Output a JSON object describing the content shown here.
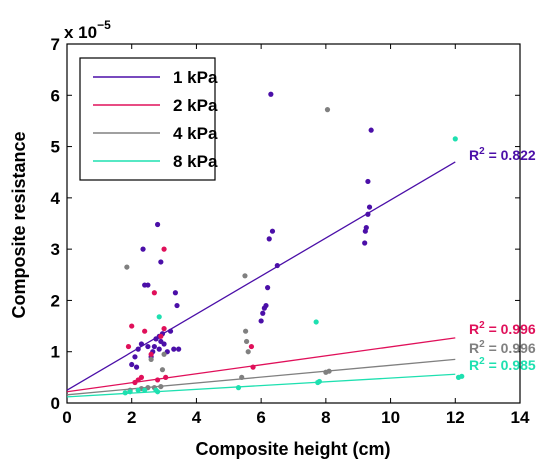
{
  "chart_data": {
    "type": "scatter",
    "title": "",
    "xlabel": "Composite height (cm)",
    "ylabel": "Composite resistance",
    "y_multiplier": {
      "base": "x 10",
      "exponent": "−5"
    },
    "xlim": [
      0,
      14
    ],
    "ylim": [
      0,
      7
    ],
    "xticks": [
      0,
      2,
      4,
      6,
      8,
      10,
      12,
      14
    ],
    "yticks": [
      0,
      1,
      2,
      3,
      4,
      5,
      6,
      7
    ],
    "xtick_labels": [
      "0",
      "2",
      "4",
      "6",
      "8",
      "10",
      "12",
      "14"
    ],
    "ytick_labels": [
      "0",
      "1",
      "2",
      "3",
      "4",
      "5",
      "6",
      "7"
    ],
    "grid": false,
    "legend_position": "top-left",
    "series": [
      {
        "name": "1 kPa",
        "color": "#4b0fa8",
        "fit": {
          "x": [
            0,
            12
          ],
          "y": [
            0.25,
            4.7
          ]
        },
        "r2_label": "R",
        "r2_sup": "2",
        "r2_value": " = 0.822",
        "points": [
          [
            2.0,
            0.75
          ],
          [
            2.1,
            0.9
          ],
          [
            2.15,
            0.7
          ],
          [
            2.2,
            1.05
          ],
          [
            2.3,
            1.15
          ],
          [
            2.35,
            3.0
          ],
          [
            2.4,
            2.3
          ],
          [
            2.5,
            2.3
          ],
          [
            2.5,
            1.1
          ],
          [
            2.6,
            0.9
          ],
          [
            2.65,
            1.0
          ],
          [
            2.7,
            1.1
          ],
          [
            2.75,
            1.25
          ],
          [
            2.8,
            3.48
          ],
          [
            2.85,
            1.3
          ],
          [
            2.85,
            1.05
          ],
          [
            2.9,
            2.75
          ],
          [
            2.9,
            1.2
          ],
          [
            2.95,
            1.35
          ],
          [
            3.0,
            1.15
          ],
          [
            3.1,
            1.0
          ],
          [
            3.2,
            1.4
          ],
          [
            3.3,
            1.05
          ],
          [
            3.35,
            2.15
          ],
          [
            3.4,
            1.9
          ],
          [
            3.45,
            1.05
          ],
          [
            6.0,
            1.6
          ],
          [
            6.05,
            1.75
          ],
          [
            6.1,
            1.85
          ],
          [
            6.15,
            1.9
          ],
          [
            6.2,
            2.25
          ],
          [
            6.25,
            3.2
          ],
          [
            6.3,
            6.02
          ],
          [
            6.35,
            3.35
          ],
          [
            6.5,
            2.68
          ],
          [
            9.2,
            3.12
          ],
          [
            9.22,
            3.35
          ],
          [
            9.25,
            3.42
          ],
          [
            9.3,
            3.68
          ],
          [
            9.3,
            4.32
          ],
          [
            9.35,
            3.82
          ],
          [
            9.4,
            5.32
          ]
        ]
      },
      {
        "name": "2 kPa",
        "color": "#e0105a",
        "fit": {
          "x": [
            0,
            12
          ],
          "y": [
            0.22,
            1.27
          ]
        },
        "r2_label": "R",
        "r2_sup": "2",
        "r2_value": " = 0.996",
        "points": [
          [
            1.9,
            1.1
          ],
          [
            2.0,
            1.5
          ],
          [
            2.1,
            0.4
          ],
          [
            2.2,
            0.45
          ],
          [
            2.3,
            0.5
          ],
          [
            2.4,
            1.4
          ],
          [
            2.6,
            0.95
          ],
          [
            2.7,
            2.15
          ],
          [
            2.8,
            0.45
          ],
          [
            2.9,
            1.3
          ],
          [
            3.0,
            1.45
          ],
          [
            3.0,
            3.0
          ],
          [
            3.05,
            0.5
          ],
          [
            5.7,
            1.1
          ],
          [
            5.75,
            0.7
          ]
        ]
      },
      {
        "name": "4 kPa",
        "color": "#808080",
        "fit": {
          "x": [
            0,
            12
          ],
          "y": [
            0.16,
            0.85
          ]
        },
        "r2_label": "R",
        "r2_sup": "2",
        "r2_value": " = 0.996",
        "points": [
          [
            1.85,
            2.65
          ],
          [
            1.95,
            0.25
          ],
          [
            2.3,
            0.28
          ],
          [
            2.5,
            0.3
          ],
          [
            2.6,
            0.85
          ],
          [
            2.7,
            0.3
          ],
          [
            2.9,
            0.32
          ],
          [
            2.95,
            0.65
          ],
          [
            3.0,
            0.95
          ],
          [
            5.4,
            0.5
          ],
          [
            5.5,
            2.48
          ],
          [
            5.52,
            1.4
          ],
          [
            5.55,
            1.2
          ],
          [
            5.6,
            1.0
          ],
          [
            8.0,
            0.6
          ],
          [
            8.05,
            5.72
          ],
          [
            8.1,
            0.62
          ]
        ]
      },
      {
        "name": "8 kPa",
        "color": "#1ee0b0",
        "fit": {
          "x": [
            0,
            12
          ],
          "y": [
            0.12,
            0.56
          ]
        },
        "r2_label": "R",
        "r2_sup": "2",
        "r2_value": " = 0.985",
        "points": [
          [
            1.8,
            0.2
          ],
          [
            1.95,
            0.22
          ],
          [
            2.2,
            0.25
          ],
          [
            2.4,
            0.25
          ],
          [
            2.75,
            0.25
          ],
          [
            2.8,
            0.22
          ],
          [
            2.85,
            1.68
          ],
          [
            5.3,
            0.3
          ],
          [
            7.7,
            1.58
          ],
          [
            7.75,
            0.4
          ],
          [
            7.8,
            0.42
          ],
          [
            12.0,
            5.15
          ],
          [
            12.1,
            0.5
          ],
          [
            12.2,
            0.52
          ]
        ]
      }
    ]
  }
}
